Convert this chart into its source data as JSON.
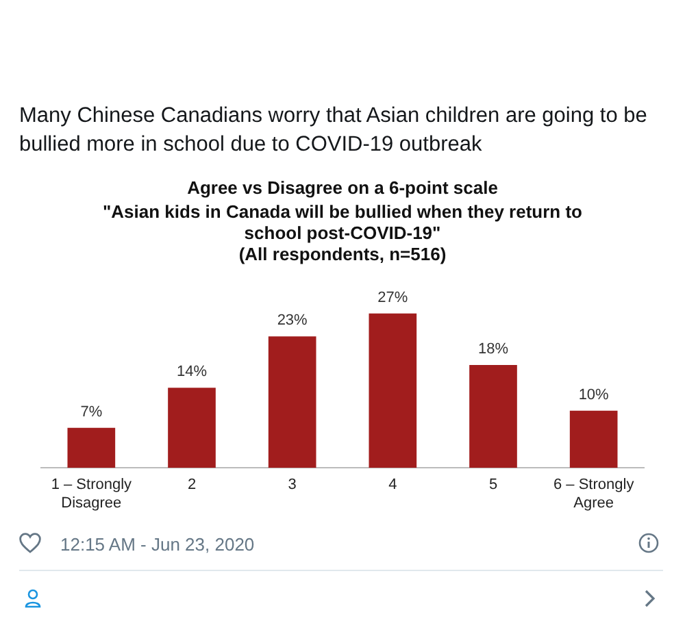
{
  "chart_data": {
    "type": "bar",
    "title": "Agree vs Disagree on a 6-point scale",
    "subtitle": "\"Asian kids in Canada will be bullied when they return to\nschool post-COVID-19\"\n(All respondents, n=516)",
    "categories": [
      "1 – Strongly\nDisagree",
      "2",
      "3",
      "4",
      "5",
      "6 – Strongly\nAgree"
    ],
    "values": [
      7,
      14,
      23,
      27,
      18,
      10
    ],
    "color": "#a11d1d",
    "value_labels": [
      "7%",
      "14%",
      "23%",
      "27%",
      "18%",
      "10%"
    ],
    "grid": false,
    "legend": false,
    "tick_labels": "x",
    "annotations": [
      "Many Chinese Canadians worry that Asian children are going to be bullied more in school due to COVID-19 outbreak",
      "12:15 AM - Jun 23, 2020"
    ]
  }
}
